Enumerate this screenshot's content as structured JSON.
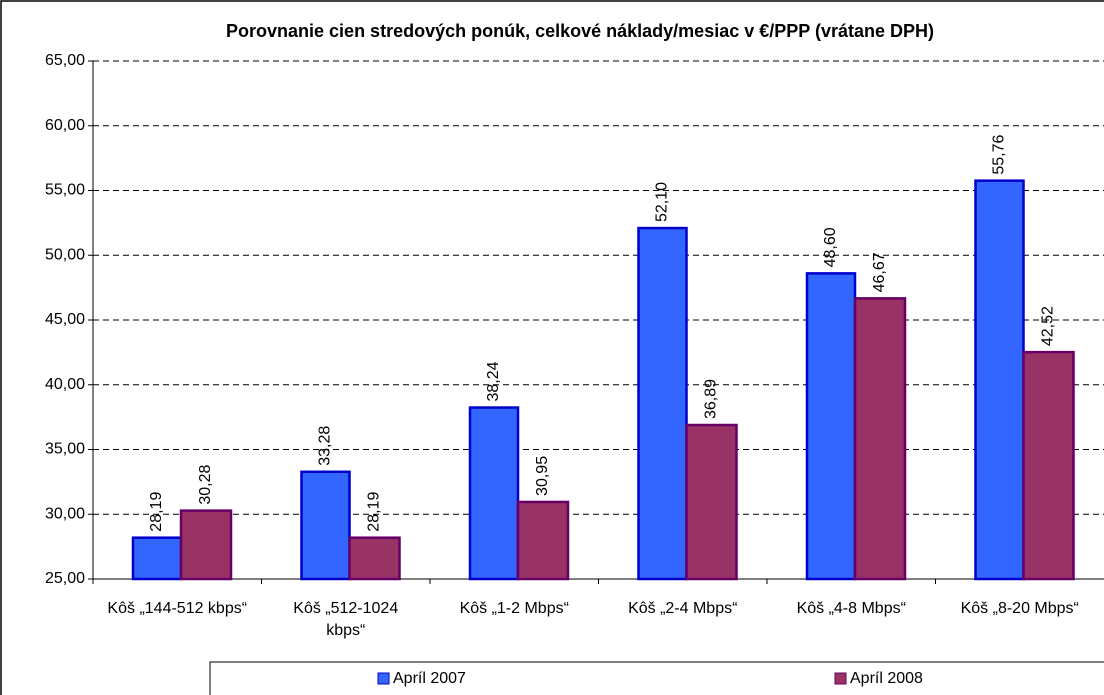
{
  "chart_data": {
    "type": "bar",
    "title": "Porovnanie cien stredových ponúk, celkové náklady/mesiac v €/PPP (vrátane DPH)",
    "categories": [
      "Kôš „144-512 kbps“",
      "Kôš „512-1024 kbps“",
      "Kôš „1-2 Mbps“",
      "Kôš „2-4 Mbps“",
      "Kôš „4-8 Mbps“",
      "Kôš „8-20 Mbps“"
    ],
    "series": [
      {
        "name": "Apríl 2007",
        "color": "#3366ff",
        "edge": "#0000cc",
        "values": [
          28.19,
          33.28,
          38.24,
          52.1,
          48.6,
          55.76
        ],
        "value_labels": [
          "28,19",
          "33,28",
          "38,24",
          "52,10",
          "48,60",
          "55,76"
        ]
      },
      {
        "name": "Apríl 2008",
        "color": "#993366",
        "edge": "#660066",
        "values": [
          30.28,
          28.19,
          30.95,
          36.89,
          46.67,
          42.52
        ],
        "value_labels": [
          "30,28",
          "28,19",
          "30,95",
          "36,89",
          "46,67",
          "42,52"
        ]
      }
    ],
    "ylim": [
      25,
      65
    ],
    "yticks": [
      {
        "value": 25,
        "label": "25,00"
      },
      {
        "value": 30,
        "label": "30,00"
      },
      {
        "value": 35,
        "label": "35,00"
      },
      {
        "value": 40,
        "label": "40,00"
      },
      {
        "value": 45,
        "label": "45,00"
      },
      {
        "value": 50,
        "label": "50,00"
      },
      {
        "value": 55,
        "label": "55,00"
      },
      {
        "value": 60,
        "label": "60,00"
      },
      {
        "value": 65,
        "label": "65,00"
      }
    ],
    "grid": true,
    "legend": "bottom"
  }
}
